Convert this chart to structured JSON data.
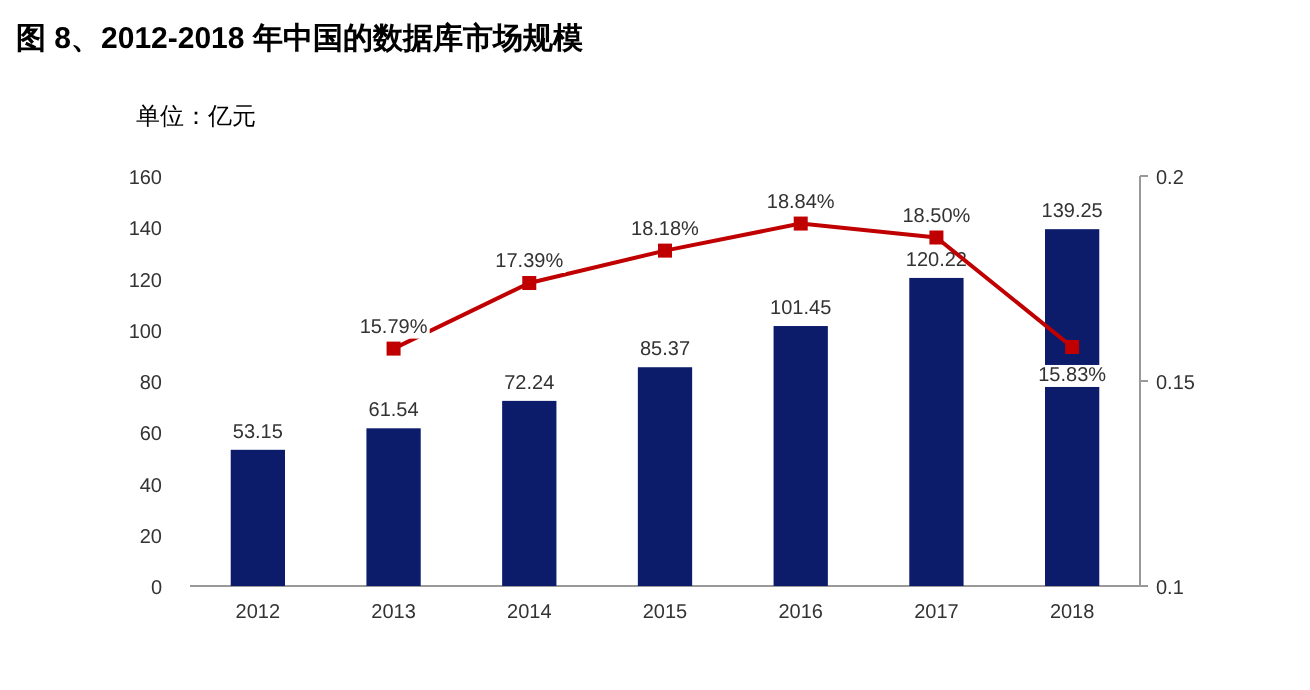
{
  "chart_data": {
    "type": "bar",
    "title": "图 8、2012-2018 年中国的数据库市场规模",
    "ylabel": "单位：亿元",
    "categories": [
      "2012",
      "2013",
      "2014",
      "2015",
      "2016",
      "2017",
      "2018"
    ],
    "ylim": [
      0,
      160
    ],
    "yticks": [
      0,
      20,
      40,
      60,
      80,
      100,
      120,
      140,
      160
    ],
    "y2lim": [
      0.1,
      0.2
    ],
    "y2ticks": [
      0.1,
      0.15,
      0.2
    ],
    "grid": false,
    "series": [
      {
        "color": "#0c1c6b",
        "values": [
          53.15,
          61.54,
          72.24,
          85.37,
          101.45,
          120.22,
          139.25
        ],
        "value_labels": [
          "53.15",
          "61.54",
          "72.24",
          "85.37",
          "101.45",
          "120.22",
          "139.25"
        ]
      },
      {
        "type": "line",
        "axis": "y2",
        "color": "#c00000",
        "marker": "square",
        "values": [
          null,
          0.1579,
          0.1739,
          0.1818,
          0.1884,
          0.185,
          0.1583
        ],
        "value_labels": [
          null,
          "15.79%",
          "17.39%",
          "18.18%",
          "18.84%",
          "18.50%",
          "15.83%"
        ]
      }
    ]
  }
}
